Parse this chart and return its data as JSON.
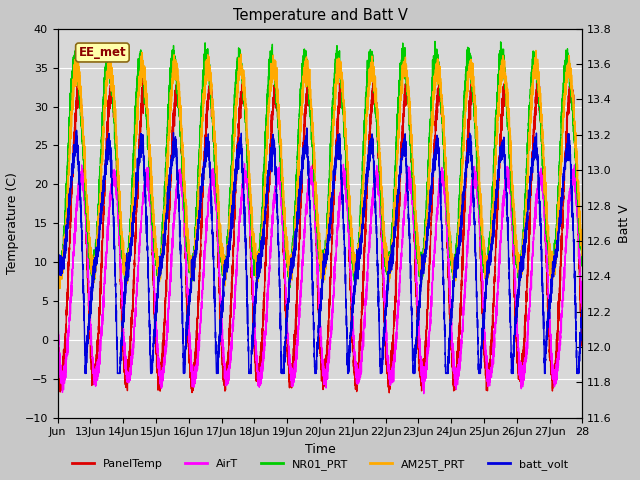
{
  "title": "Temperature and Batt V",
  "xlabel": "Time",
  "ylabel_left": "Temperature (C)",
  "ylabel_right": "Batt V",
  "annotation": "EE_met",
  "ylim_left": [
    -10,
    40
  ],
  "ylim_right": [
    11.6,
    13.8
  ],
  "left_yticks": [
    -10,
    -5,
    0,
    5,
    10,
    15,
    20,
    25,
    30,
    35,
    40
  ],
  "right_yticks": [
    11.6,
    11.8,
    12.0,
    12.2,
    12.4,
    12.6,
    12.8,
    13.0,
    13.2,
    13.4,
    13.6,
    13.8
  ],
  "xtick_positions": [
    0,
    1,
    2,
    3,
    4,
    5,
    6,
    7,
    8,
    9,
    10,
    11,
    12,
    13,
    14,
    15,
    16
  ],
  "xtick_labels": [
    "Jun",
    "13Jun",
    "14Jun",
    "15Jun",
    "16Jun",
    "17Jun",
    "18Jun",
    "19Jun",
    "20Jun",
    "21Jun",
    "22Jun",
    "23Jun",
    "24Jun",
    "25Jun",
    "26Jun",
    "27Jun",
    "28"
  ],
  "figure_facecolor": "#c8c8c8",
  "axes_facecolor": "#d8d8d8",
  "grid_color": "#ffffff",
  "series": [
    {
      "name": "PanelTemp",
      "color": "#dd0000",
      "linewidth": 1.0
    },
    {
      "name": "AirT",
      "color": "#ff00ff",
      "linewidth": 1.0
    },
    {
      "name": "NR01_PRT",
      "color": "#00cc00",
      "linewidth": 1.0
    },
    {
      "name": "AM25T_PRT",
      "color": "#ffaa00",
      "linewidth": 1.0
    },
    {
      "name": "batt_volt",
      "color": "#0000dd",
      "linewidth": 1.0
    }
  ]
}
